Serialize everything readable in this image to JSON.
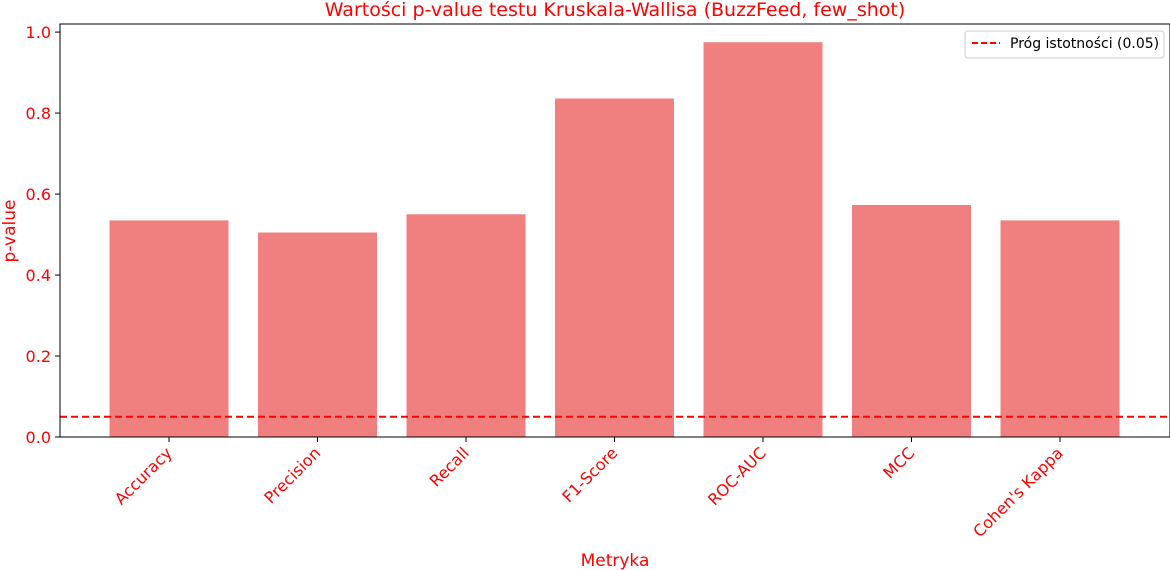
{
  "chart_data": {
    "type": "bar",
    "title": "Wartości p-value testu Kruskala-Wallisa (BuzzFeed, few_shot)",
    "xlabel": "Metryka",
    "ylabel": "p-value",
    "categories": [
      "Accuracy",
      "Precision",
      "Recall",
      "F1-Score",
      "ROC-AUC",
      "MCC",
      "Cohen's Kappa"
    ],
    "values": [
      0.535,
      0.505,
      0.55,
      0.836,
      0.975,
      0.573,
      0.535
    ],
    "ylim": [
      0,
      1.02
    ],
    "yticks": [
      0.0,
      0.2,
      0.4,
      0.6,
      0.8,
      1.0
    ],
    "ytick_labels": [
      "0.0",
      "0.2",
      "0.4",
      "0.6",
      "0.8",
      "1.0"
    ],
    "threshold": {
      "value": 0.05,
      "label": "Próg istotności (0.05)",
      "style": "dashed"
    },
    "legend_position": "top-right",
    "grid": false,
    "colors": {
      "bar": "#f08080",
      "threshold": "#ff0000",
      "text": "#ff0000",
      "axis": "#000000"
    }
  }
}
